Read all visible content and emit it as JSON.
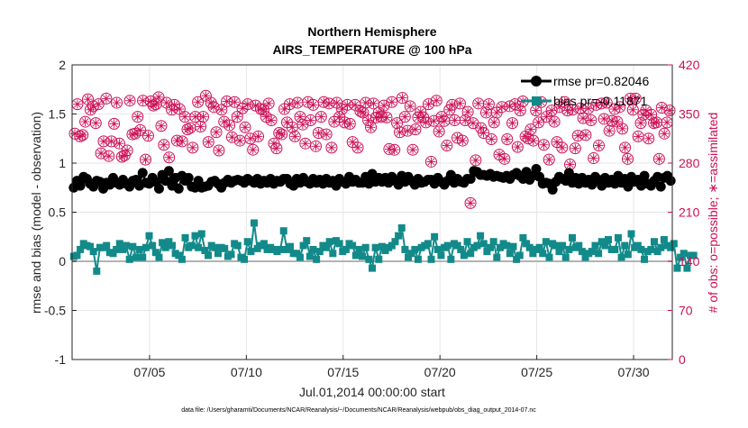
{
  "figure": {
    "title_line1": "Northern Hemisphere",
    "title_line2": "AIRS_TEMPERATURE @ 100 hPa",
    "xlabel": "Jul.01,2014 00:00:00 start",
    "ylabel_left": "rmse and bias (model - observation)",
    "ylabel_right": "# of obs: o=possible; ∗=assimilated",
    "footnote": "data file: /Users/gharamti/Documents/NCAR/Reanalysis/~/Documents/NCAR/Reanalysis/webpub/obs_diag_output_2014-07.nc"
  },
  "legend": {
    "rmse_label": "rmse pr=0.82046",
    "bias_label": "bias pr=-0.11871",
    "placement": "top-right"
  },
  "colors": {
    "rmse": "#000000",
    "bias": "#138a8a",
    "obs": "#cc0f55",
    "zero_line": "#b3b3b3",
    "grid": "#e6e6e6"
  },
  "chart_data": {
    "type": "line",
    "x_unit": "days since Jul.01,2014 00:00:00",
    "xlim": [
      0.5,
      31.5
    ],
    "x_ticks": [
      4.5,
      9.5,
      14.5,
      19.5,
      24.5,
      29.5
    ],
    "x_tick_labels": [
      "07/05",
      "07/10",
      "07/15",
      "07/20",
      "07/25",
      "07/30"
    ],
    "ylim_left": [
      -1,
      2
    ],
    "y_ticks_left": [
      -1,
      -0.5,
      0,
      0.5,
      1,
      1.5,
      2
    ],
    "y_tick_labels_left": [
      "-1",
      "-0.5",
      "0",
      "0.5",
      "1",
      "1.5",
      "2"
    ],
    "ylim_right": [
      0,
      420
    ],
    "y_ticks_right": [
      0,
      70,
      140,
      210,
      280,
      350,
      420
    ],
    "y_tick_labels_right": [
      "0",
      "70",
      "140",
      "210",
      "280",
      "350",
      "420"
    ],
    "grid": true,
    "rmse": [
      0.75,
      0.82,
      0.77,
      0.86,
      0.84,
      0.79,
      0.76,
      0.82,
      0.81,
      0.74,
      0.8,
      0.78,
      0.85,
      0.8,
      0.78,
      0.83,
      0.79,
      0.76,
      0.82,
      0.83,
      0.77,
      0.9,
      0.8,
      0.79,
      0.85,
      0.81,
      0.74,
      0.88,
      0.82,
      0.92,
      0.77,
      0.85,
      0.74,
      0.87,
      0.82,
      0.85,
      0.76,
      0.75,
      0.82,
      0.75,
      0.76,
      0.77,
      0.81,
      0.82,
      0.79,
      0.75,
      0.8,
      0.83,
      0.8,
      0.82,
      0.83,
      0.82,
      0.8,
      0.84,
      0.82,
      0.8,
      0.84,
      0.79,
      0.82,
      0.8,
      0.84,
      0.79,
      0.82,
      0.81,
      0.84,
      0.84,
      0.79,
      0.77,
      0.84,
      0.8,
      0.85,
      0.81,
      0.79,
      0.84,
      0.8,
      0.83,
      0.79,
      0.84,
      0.8,
      0.82,
      0.77,
      0.84,
      0.81,
      0.79,
      0.86,
      0.81,
      0.83,
      0.8,
      0.8,
      0.86,
      0.79,
      0.89,
      0.81,
      0.85,
      0.81,
      0.85,
      0.8,
      0.86,
      0.82,
      0.78,
      0.87,
      0.81,
      0.86,
      0.82,
      0.78,
      0.84,
      0.8,
      0.81,
      0.83,
      0.83,
      0.79,
      0.85,
      0.81,
      0.78,
      0.82,
      0.88,
      0.8,
      0.84,
      0.81,
      0.8,
      0.84,
      0.84,
      0.92,
      0.91,
      0.88,
      0.88,
      0.87,
      0.89,
      0.86,
      0.87,
      0.86,
      0.85,
      0.87,
      0.84,
      0.88,
      0.9,
      0.87,
      0.84,
      0.91,
      0.83,
      0.87,
      0.94,
      0.86,
      0.79,
      0.8,
      0.79,
      0.73,
      0.81,
      0.86,
      0.84,
      0.82,
      0.9,
      0.8,
      0.85,
      0.79,
      0.85,
      0.8,
      0.83,
      0.78,
      0.86,
      0.83,
      0.77,
      0.85,
      0.8,
      0.83,
      0.79,
      0.87,
      0.8,
      0.84,
      0.76,
      0.86,
      0.81,
      0.83,
      0.77,
      0.87,
      0.79,
      0.77,
      0.82,
      0.86,
      0.76,
      0.85,
      0.87,
      0.82
    ],
    "bias": [
      0.05,
      0.06,
      0.12,
      0.18,
      0.16,
      0.15,
      0.1,
      -0.1,
      0.14,
      0.14,
      0.16,
      0.09,
      0.08,
      0.12,
      0.18,
      0.12,
      0.16,
      0.02,
      0.15,
      0.04,
      0.12,
      0.04,
      0.14,
      0.26,
      0.16,
      0.09,
      0.04,
      0.19,
      0.14,
      0.2,
      0.16,
      0.08,
      0.06,
      0.02,
      0.24,
      0.14,
      0.16,
      0.26,
      0.14,
      0.28,
      0.11,
      0.06,
      0.16,
      0.14,
      0.08,
      0.14,
      0.13,
      0.05,
      0.07,
      0.18,
      0.16,
      0.04,
      0.02,
      0.2,
      0.1,
      0.39,
      0.13,
      0.16,
      0.18,
      0.12,
      0.14,
      0.12,
      0.1,
      0.12,
      0.31,
      0.12,
      0.15,
      0.08,
      0.08,
      0.04,
      0.16,
      0.21,
      0.05,
      0.12,
      0.02,
      0.1,
      0.16,
      0.14,
      0.2,
      0.08,
      0.21,
      0.18,
      0.1,
      0.12,
      0.18,
      0.16,
      0.06,
      0.12,
      0.05,
      0.14,
      0.02,
      -0.07,
      0.14,
      0.02,
      0.15,
      0.11,
      0.14,
      0.16,
      0.2,
      0.26,
      0.34,
      0.12,
      0.04,
      0.08,
      0.12,
      0.02,
      0.14,
      0.16,
      0.18,
      0.02,
      0.25,
      0.12,
      0.06,
      0.14,
      0.16,
      0.02,
      0.18,
      0.16,
      0.12,
      0.06,
      0.2,
      0.08,
      0.14,
      0.16,
      0.26,
      0.18,
      0.1,
      0.14,
      0.2,
      0.04,
      0.14,
      0.18,
      0.16,
      0.08,
      0.15,
      0.02,
      0.06,
      0.24,
      0.18,
      0.14,
      0.08,
      0.12,
      0.14,
      0.08,
      0.2,
      0.04,
      0.18,
      0.16,
      0.1,
      0.16,
      0.04,
      0.12,
      0.24,
      0.14,
      0.16,
      0.1,
      0.04,
      0.08,
      0.1,
      0.16,
      0.08,
      0.2,
      0.16,
      0.22,
      0.12,
      0.12,
      0.24,
      0.04,
      0.16,
      0.07,
      0.28,
      0.14,
      0.16,
      0.12,
      0.02,
      0.1,
      0.12,
      0.2,
      0.1,
      0.14,
      0.22,
      0.16,
      0.14,
      0.18,
      -0.07,
      0.04,
      0.08,
      -0.07,
      0.06,
      0.06
    ],
    "obs_possible": [
      322,
      364,
      318,
      320,
      339,
      371,
      356,
      361,
      337,
      364,
      294,
      311,
      372,
      290,
      311,
      336,
      366,
      308,
      289,
      291,
      298,
      369,
      321,
      322,
      346,
      327,
      369,
      285,
      319,
      368,
      362,
      364,
      374,
      333,
      306,
      366,
      288,
      356,
      363,
      312,
      357,
      311,
      346,
      328,
      330,
      302,
      346,
      367,
      332,
      346,
      376,
      310,
      366,
      360,
      324,
      298,
      356,
      339,
      368,
      334,
      317,
      367,
      346,
      312,
      358,
      331,
      364,
      315,
      299,
      362,
      318,
      357,
      356,
      346,
      365,
      341,
      308,
      301,
      323,
      321,
      357,
      338,
      364,
      331,
      318,
      366,
      346,
      335,
      308,
      367,
      341,
      363,
      304,
      323,
      346,
      367,
      321,
      365,
      302,
      339,
      366,
      346,
      357,
      338,
      363,
      336,
      310,
      363,
      302,
      354,
      352,
      366,
      341,
      331,
      365,
      345,
      352,
      346,
      362,
      345,
      300,
      367,
      299,
      337,
      324,
      373,
      346,
      326,
      361,
      299,
      328,
      345,
      353,
      345,
      338,
      364,
      282,
      340,
      369,
      325,
      346,
      340,
      305,
      356,
      363,
      341,
      316,
      365,
      312,
      341,
      353,
      223,
      337,
      284,
      365,
      330,
      323,
      352,
      364,
      314,
      338,
      352,
      292,
      360,
      286,
      314,
      361,
      337,
      364,
      303,
      355,
      368,
      318,
      315,
      328,
      312,
      355,
      338,
      367,
      306,
      346,
      285,
      355,
      339,
      310,
      360,
      302,
      367,
      355,
      278,
      356,
      301,
      319,
      358,
      344,
      320,
      358,
      341,
      287,
      363,
      305,
      365,
      343,
      366,
      326,
      340,
      357,
      339,
      360,
      329,
      302,
      286,
      372,
      356,
      372,
      318,
      337,
      349,
      355,
      315,
      349,
      337,
      338,
      286,
      359,
      322,
      338,
      355
    ]
  }
}
